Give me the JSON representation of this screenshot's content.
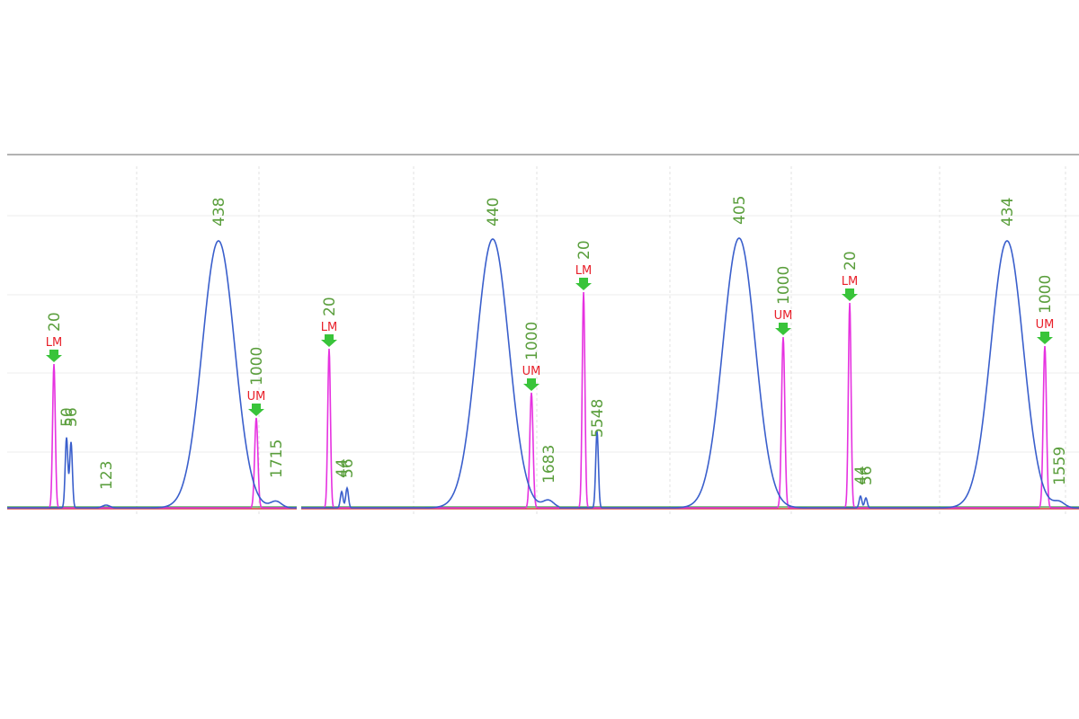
{
  "panels": [
    {
      "peaks": [
        {
          "size": "20",
          "marker": "LM"
        },
        {
          "size": "50"
        },
        {
          "size": "56"
        },
        {
          "size": "123"
        },
        {
          "size": "438"
        },
        {
          "size": "1000",
          "marker": "UM"
        },
        {
          "size": "1715"
        }
      ]
    },
    {
      "peaks": [
        {
          "size": "20",
          "marker": "LM"
        },
        {
          "size": "44"
        },
        {
          "size": "56"
        },
        {
          "size": "440"
        },
        {
          "size": "1000",
          "marker": "UM"
        },
        {
          "size": "1683"
        }
      ]
    },
    {
      "peaks": [
        {
          "size": "20",
          "marker": "LM"
        },
        {
          "size": "5548"
        },
        {
          "size": "405"
        },
        {
          "size": "1000",
          "marker": "UM"
        }
      ]
    },
    {
      "peaks": [
        {
          "size": "20",
          "marker": "LM"
        },
        {
          "size": "44"
        },
        {
          "size": "56"
        },
        {
          "size": "434"
        },
        {
          "size": "1000",
          "marker": "UM"
        },
        {
          "size": "1559"
        }
      ]
    }
  ]
}
